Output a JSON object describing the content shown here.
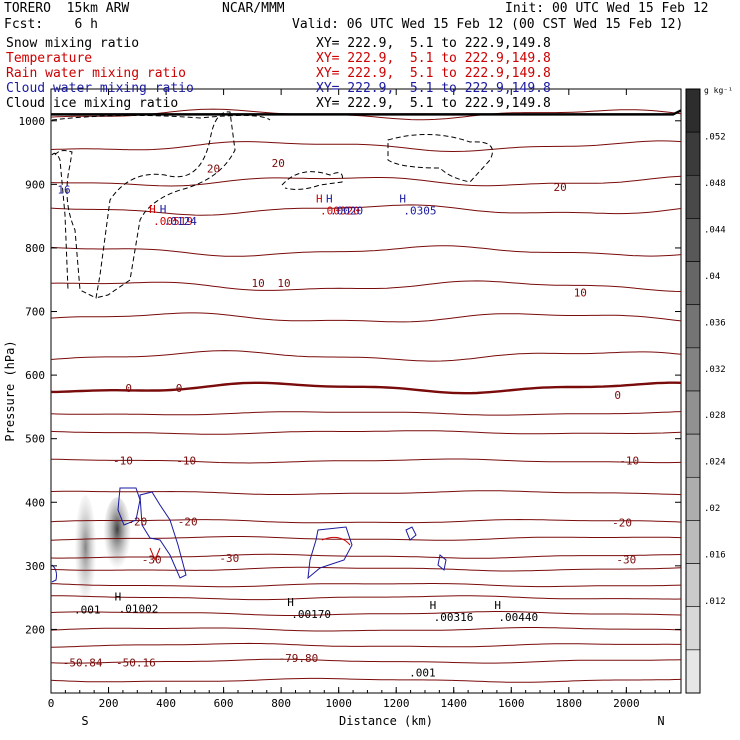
{
  "header": {
    "model": "TORERO  15km ARW",
    "org": "NCAR/MMM",
    "init": "Init: 00 UTC Wed 15 Feb 12",
    "fcst": "Fcst:    6 h",
    "valid": "Valid: 06 UTC Wed 15 Feb 12 (00 CST Wed 15 Feb 12)"
  },
  "colors": {
    "black": "#000000",
    "temperature": "#cc0000",
    "temperature_line": "#7a0b0b",
    "rain": "#cc0000",
    "cloud_water": "#1a1aa0",
    "grid": "#7a0b0b"
  },
  "legend": [
    {
      "label": "Snow mixing ratio",
      "xy": "XY= 222.9,  5.1 to 222.9,149.8",
      "color": "#000000"
    },
    {
      "label": "Temperature",
      "xy": "XY= 222.9,  5.1 to 222.9,149.8",
      "color": "#cc0000"
    },
    {
      "label": "Rain water mixing ratio",
      "xy": "XY= 222.9,  5.1 to 222.9,149.8",
      "color": "#cc0000"
    },
    {
      "label": "Cloud water mixing ratio",
      "xy": "XY= 222.9,  5.1 to 222.9,149.8",
      "color": "#1a1aa0"
    },
    {
      "label": "Cloud ice mixing ratio",
      "xy": "XY= 222.9,  5.1 to 222.9,149.8",
      "color": "#000000"
    }
  ],
  "chart_data": {
    "type": "cross-section",
    "xlabel": "Distance (km)",
    "ylabel": "Pressure (hPa)",
    "xlim": [
      0,
      2190
    ],
    "ylim": [
      1050,
      100
    ],
    "x_ticks": [
      0,
      200,
      400,
      600,
      800,
      1000,
      1200,
      1400,
      1600,
      1800,
      2000
    ],
    "y_ticks": [
      200,
      300,
      400,
      500,
      600,
      700,
      800,
      900,
      1000
    ],
    "x_endpoints": [
      "S",
      "N"
    ],
    "colorbar": {
      "unit": "g kg⁻¹",
      "tick_labels": [
        ".052",
        ".048",
        ".044",
        ".04",
        ".036",
        ".032",
        ".028",
        ".024",
        ".02",
        ".016",
        ".012"
      ]
    },
    "temperature_labels": [
      {
        "x": 110,
        "p": 148,
        "text": "-50.84"
      },
      {
        "x": 295,
        "p": 148,
        "text": "-50.16"
      },
      {
        "x": 860,
        "p": 155,
        "text": "-79.80"
      },
      {
        "x": 350,
        "p": 310,
        "text": "-30"
      },
      {
        "x": 620,
        "p": 312,
        "text": "-30"
      },
      {
        "x": 2000,
        "p": 310,
        "text": "-30"
      },
      {
        "x": 300,
        "p": 370,
        "text": "-20"
      },
      {
        "x": 475,
        "p": 370,
        "text": "-20"
      },
      {
        "x": 1985,
        "p": 368,
        "text": "-20"
      },
      {
        "x": 250,
        "p": 466,
        "text": "-10"
      },
      {
        "x": 470,
        "p": 466,
        "text": "-10"
      },
      {
        "x": 2010,
        "p": 466,
        "text": "-10"
      },
      {
        "x": 270,
        "p": 580,
        "text": "0"
      },
      {
        "x": 445,
        "p": 580,
        "text": "0"
      },
      {
        "x": 1970,
        "p": 569,
        "text": "0"
      },
      {
        "x": 720,
        "p": 745,
        "text": "10"
      },
      {
        "x": 810,
        "p": 745,
        "text": "10"
      },
      {
        "x": 1840,
        "p": 730,
        "text": "10"
      },
      {
        "x": 565,
        "p": 925,
        "text": "20"
      },
      {
        "x": 790,
        "p": 934,
        "text": "20"
      },
      {
        "x": 1770,
        "p": 896,
        "text": "20"
      }
    ],
    "max_labels": [
      {
        "x": 80,
        "p": 225,
        "text": ".001",
        "color": "#000000"
      },
      {
        "x": 235,
        "p": 227,
        "text": ".01002",
        "color": "#000000"
      },
      {
        "x": 835,
        "p": 218,
        "text": ".00170",
        "color": "#000000"
      },
      {
        "x": 1330,
        "p": 213,
        "text": ".00316",
        "color": "#000000"
      },
      {
        "x": 1555,
        "p": 213,
        "text": ".00440",
        "color": "#000000"
      },
      {
        "x": 1245,
        "p": 126,
        "text": ".001",
        "color": "#000000"
      },
      {
        "x": 355,
        "p": 836,
        "text": ".00519",
        "color": "#cc0000"
      },
      {
        "x": 392,
        "p": 836,
        "text": ".0124",
        "color": "#1a1aa0"
      },
      {
        "x": 935,
        "p": 853,
        "text": ".00320",
        "color": "#cc0000"
      },
      {
        "x": 970,
        "p": 853,
        "text": ".0020",
        "color": "#1a1aa0"
      },
      {
        "x": 1225,
        "p": 853,
        "text": ".0305",
        "color": "#1a1aa0"
      },
      {
        "x": 22,
        "p": 886,
        "text": "16",
        "color": "#1a1aa0"
      }
    ],
    "temperature_lines_hPa": [
      120,
      150,
      175,
      200,
      225,
      250,
      270,
      295,
      315,
      343,
      370,
      415,
      465,
      510,
      540,
      580,
      630,
      690,
      740,
      795,
      860,
      905,
      960,
      1010
    ]
  }
}
